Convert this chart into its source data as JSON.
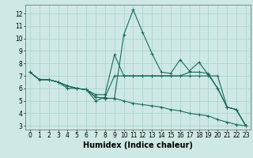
{
  "xlabel": "Humidex (Indice chaleur)",
  "ylabel": "",
  "bg_color": "#cde8e5",
  "grid_color": "#afd4d0",
  "line_color": "#1a6b5a",
  "xlim": [
    -0.5,
    23.5
  ],
  "ylim": [
    2.7,
    12.7
  ],
  "yticks": [
    3,
    4,
    5,
    6,
    7,
    8,
    9,
    10,
    11,
    12
  ],
  "xticks": [
    0,
    1,
    2,
    3,
    4,
    5,
    6,
    7,
    8,
    9,
    10,
    11,
    12,
    13,
    14,
    15,
    16,
    17,
    18,
    19,
    20,
    21,
    22,
    23
  ],
  "lines": [
    {
      "x": [
        0,
        1,
        2,
        3,
        4,
        5,
        6,
        7,
        8,
        9,
        10,
        11,
        12,
        13,
        14,
        15,
        16,
        17,
        18,
        19,
        20,
        21,
        22,
        23
      ],
      "y": [
        7.3,
        6.7,
        6.7,
        6.5,
        6.2,
        6.0,
        5.9,
        5.3,
        5.2,
        5.2,
        10.3,
        12.3,
        10.5,
        8.8,
        7.3,
        7.2,
        8.3,
        7.4,
        8.1,
        7.1,
        6.0,
        4.5,
        4.3,
        3.0
      ]
    },
    {
      "x": [
        0,
        1,
        2,
        3,
        4,
        5,
        6,
        7,
        8,
        9,
        10,
        11,
        12,
        13,
        14,
        15,
        16,
        17,
        18,
        19,
        20,
        21,
        22,
        23
      ],
      "y": [
        7.3,
        6.7,
        6.7,
        6.5,
        6.0,
        6.0,
        5.9,
        5.0,
        5.3,
        7.0,
        7.0,
        7.0,
        7.0,
        7.0,
        7.0,
        7.0,
        7.0,
        7.0,
        7.0,
        7.0,
        7.0,
        4.5,
        4.3,
        3.0
      ]
    },
    {
      "x": [
        0,
        1,
        2,
        3,
        4,
        5,
        6,
        7,
        8,
        9,
        10,
        11,
        12,
        13,
        14,
        15,
        16,
        17,
        18,
        19,
        20,
        21,
        22,
        23
      ],
      "y": [
        7.3,
        6.7,
        6.7,
        6.5,
        6.2,
        6.0,
        5.9,
        5.5,
        5.5,
        8.7,
        7.0,
        7.0,
        7.0,
        7.0,
        7.0,
        7.0,
        7.0,
        7.3,
        7.3,
        7.2,
        6.0,
        4.5,
        4.3,
        3.0
      ]
    },
    {
      "x": [
        0,
        1,
        2,
        3,
        4,
        5,
        6,
        7,
        8,
        9,
        10,
        11,
        12,
        13,
        14,
        15,
        16,
        17,
        18,
        19,
        20,
        21,
        22,
        23
      ],
      "y": [
        7.3,
        6.7,
        6.7,
        6.5,
        6.2,
        6.0,
        5.9,
        5.3,
        5.2,
        5.2,
        5.0,
        4.8,
        4.7,
        4.6,
        4.5,
        4.3,
        4.2,
        4.0,
        3.9,
        3.8,
        3.5,
        3.3,
        3.1,
        3.0
      ]
    }
  ],
  "xlabel_fontsize": 7,
  "tick_labelsize": 5.5
}
